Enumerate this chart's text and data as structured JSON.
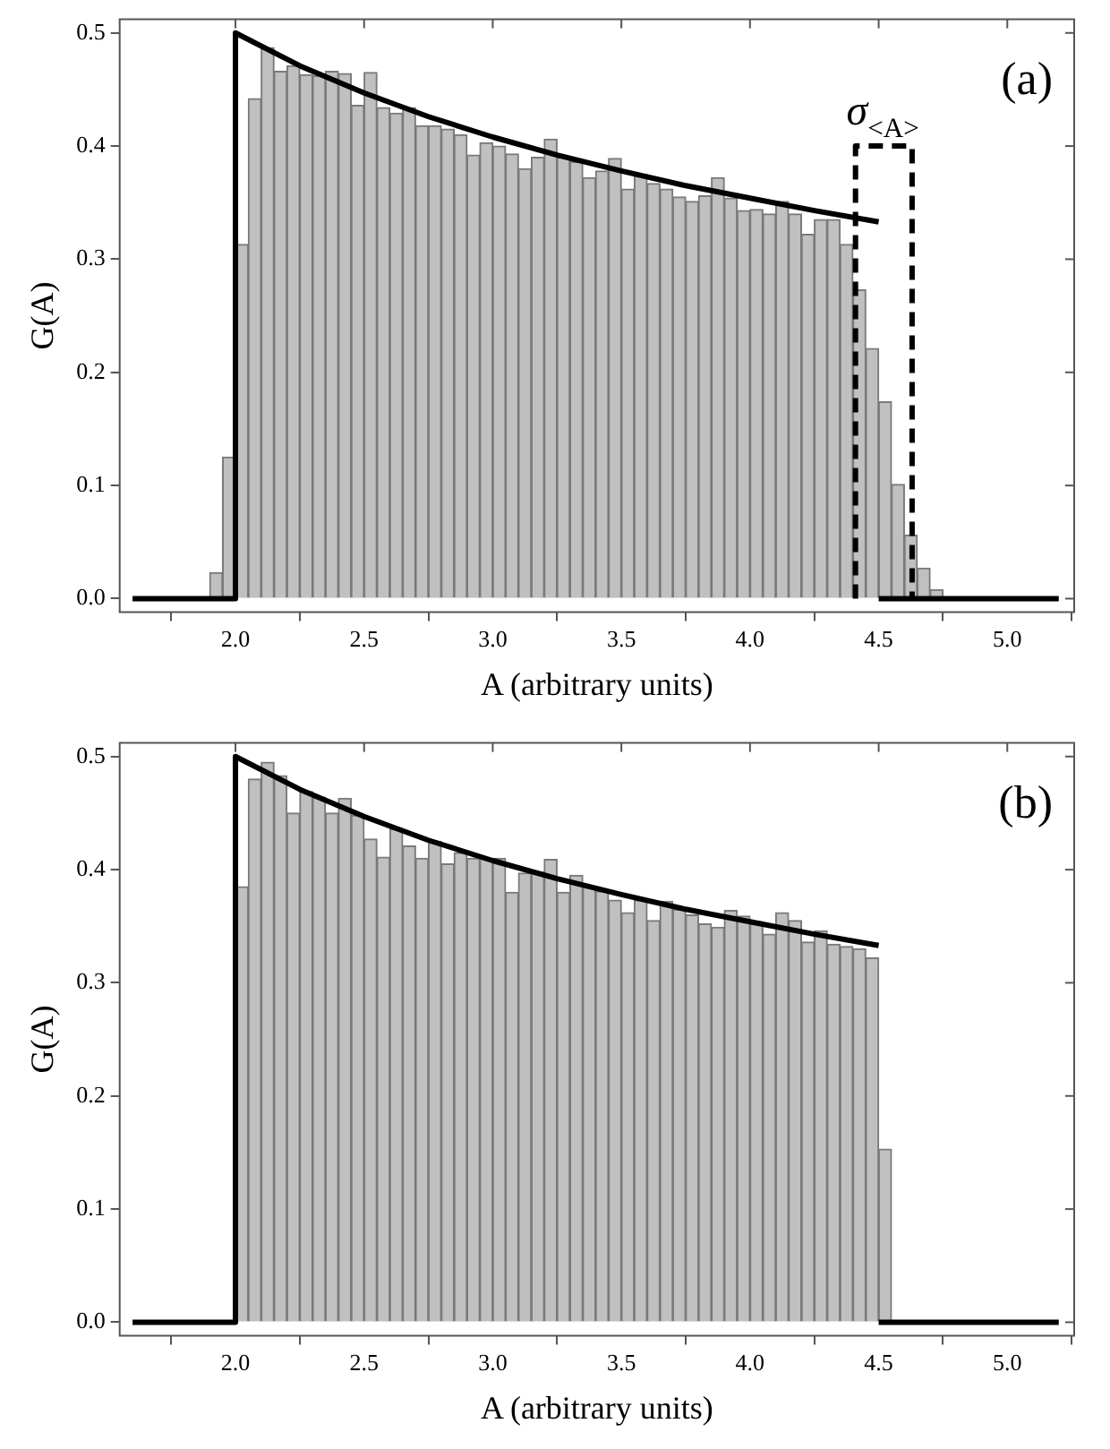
{
  "chart_data": [
    {
      "type": "histogram",
      "xlabel": "A (arbitrary units)",
      "ylabel": "G(A)",
      "color": "#c0c0c0",
      "grid": false,
      "marker": "none",
      "bins": [
        1.9,
        1.95,
        2.0,
        2.05,
        2.1,
        2.15,
        2.2,
        2.25,
        2.3,
        2.35,
        2.4,
        2.45,
        2.5,
        2.55,
        2.6,
        2.65,
        2.7,
        2.75,
        2.8,
        2.85,
        2.9,
        2.95,
        3.0,
        3.05,
        3.1,
        3.15,
        3.2,
        3.25,
        3.3,
        3.35,
        3.4,
        3.45,
        3.5,
        3.55,
        3.6,
        3.65,
        3.7,
        3.75,
        3.8,
        3.85,
        3.9,
        3.95,
        4.0,
        4.05,
        4.1,
        4.15,
        4.2,
        4.25,
        4.3,
        4.35,
        4.4,
        4.45,
        4.5,
        4.55,
        4.6,
        4.65,
        4.7,
        4.75
      ],
      "values": [
        0.023,
        0.125,
        0.313,
        0.442,
        0.487,
        0.466,
        0.471,
        0.463,
        0.462,
        0.466,
        0.464,
        0.436,
        0.465,
        0.434,
        0.429,
        0.434,
        0.418,
        0.418,
        0.415,
        0.41,
        0.392,
        0.403,
        0.4,
        0.393,
        0.38,
        0.39,
        0.406,
        0.39,
        0.386,
        0.372,
        0.378,
        0.389,
        0.362,
        0.375,
        0.367,
        0.362,
        0.355,
        0.351,
        0.356,
        0.372,
        0.354,
        0.343,
        0.344,
        0.34,
        0.351,
        0.34,
        0.322,
        0.335,
        0.335,
        0.313,
        0.273,
        0.221,
        0.174,
        0.101,
        0.056,
        0.027,
        0.008
      ],
      "series": [
        {
          "type": "line",
          "color": "#000000",
          "x": [
            1.6,
            2.0,
            2.0,
            2.25,
            2.5,
            2.75,
            3.0,
            3.25,
            3.5,
            3.75,
            4.0,
            4.25,
            4.5
          ],
          "values": [
            0,
            0,
            0.5,
            0.471,
            0.447,
            0.426,
            0.408,
            0.392,
            0.378,
            0.365,
            0.354,
            0.343,
            0.333
          ]
        },
        {
          "type": "line",
          "color": "#000000",
          "x": [
            4.5,
            5.2
          ],
          "values": [
            0,
            0
          ]
        },
        {
          "type": "line",
          "color": "#000000",
          "line_style": "dashed",
          "x": [
            4.41,
            4.41,
            4.63,
            4.63
          ],
          "values": [
            0,
            0.4,
            0.4,
            0
          ]
        }
      ],
      "xlim": [
        1.55,
        5.26
      ],
      "ylim": [
        -0.012,
        0.512
      ],
      "xticks": [
        {
          "value": 2,
          "label": "2.0"
        },
        {
          "value": 2.5,
          "label": "2.5"
        },
        {
          "value": 3,
          "label": "3.0"
        },
        {
          "value": 3.5,
          "label": "3.5"
        },
        {
          "value": 4,
          "label": "4.0"
        },
        {
          "value": 4.5,
          "label": "4.5"
        },
        {
          "value": 5,
          "label": "5.0"
        }
      ],
      "yticks": [
        {
          "value": 0,
          "label": "0.0"
        },
        0.1,
        0.2,
        0.3,
        0.4,
        0.5
      ],
      "annotations": [
        {
          "text": "σ$_{<A>}$",
          "x": 4.52,
          "y": 0.4
        },
        "(a)"
      ]
    },
    {
      "type": "histogram",
      "xlabel": "A (arbitrary units)",
      "ylabel": "G(A)",
      "color": "#c0c0c0",
      "grid": false,
      "marker": "none",
      "bins": [
        2.0,
        2.05,
        2.1,
        2.15,
        2.2,
        2.25,
        2.3,
        2.35,
        2.4,
        2.45,
        2.5,
        2.55,
        2.6,
        2.65,
        2.7,
        2.75,
        2.8,
        2.85,
        2.9,
        2.95,
        3.0,
        3.05,
        3.1,
        3.15,
        3.2,
        3.25,
        3.3,
        3.35,
        3.4,
        3.45,
        3.5,
        3.55,
        3.6,
        3.65,
        3.7,
        3.75,
        3.8,
        3.85,
        3.9,
        3.95,
        4.0,
        4.05,
        4.1,
        4.15,
        4.2,
        4.25,
        4.3,
        4.35,
        4.4,
        4.45,
        4.5,
        4.55
      ],
      "values": [
        0.385,
        0.48,
        0.495,
        0.483,
        0.45,
        0.469,
        0.464,
        0.45,
        0.463,
        0.448,
        0.427,
        0.411,
        0.436,
        0.421,
        0.41,
        0.425,
        0.405,
        0.415,
        0.41,
        0.41,
        0.41,
        0.38,
        0.397,
        0.398,
        0.409,
        0.38,
        0.395,
        0.385,
        0.381,
        0.373,
        0.362,
        0.373,
        0.355,
        0.372,
        0.365,
        0.36,
        0.352,
        0.349,
        0.364,
        0.359,
        0.354,
        0.343,
        0.362,
        0.355,
        0.336,
        0.346,
        0.334,
        0.332,
        0.33,
        0.322,
        0.153
      ],
      "series": [
        {
          "type": "line",
          "color": "#000000",
          "x": [
            1.6,
            2.0,
            2.0,
            2.25,
            2.5,
            2.75,
            3.0,
            3.25,
            3.5,
            3.75,
            4.0,
            4.25,
            4.5
          ],
          "values": [
            0,
            0,
            0.5,
            0.471,
            0.447,
            0.426,
            0.408,
            0.392,
            0.378,
            0.365,
            0.354,
            0.343,
            0.333
          ]
        },
        {
          "type": "line",
          "color": "#000000",
          "x": [
            4.5,
            5.2
          ],
          "values": [
            0,
            0
          ]
        }
      ],
      "xlim": [
        1.55,
        5.26
      ],
      "ylim": [
        -0.012,
        0.512
      ],
      "xticks": [
        {
          "value": 2,
          "label": "2.0"
        },
        {
          "value": 2.5,
          "label": "2.5"
        },
        {
          "value": 3,
          "label": "3.0"
        },
        {
          "value": 3.5,
          "label": "3.5"
        },
        {
          "value": 4,
          "label": "4.0"
        },
        {
          "value": 4.5,
          "label": "4.5"
        },
        {
          "value": 5,
          "label": "5.0"
        }
      ],
      "yticks": [
        {
          "value": 0,
          "label": "0.0"
        },
        0.1,
        0.2,
        0.3,
        0.4,
        0.5
      ],
      "annotations": [
        "(b)"
      ]
    }
  ]
}
